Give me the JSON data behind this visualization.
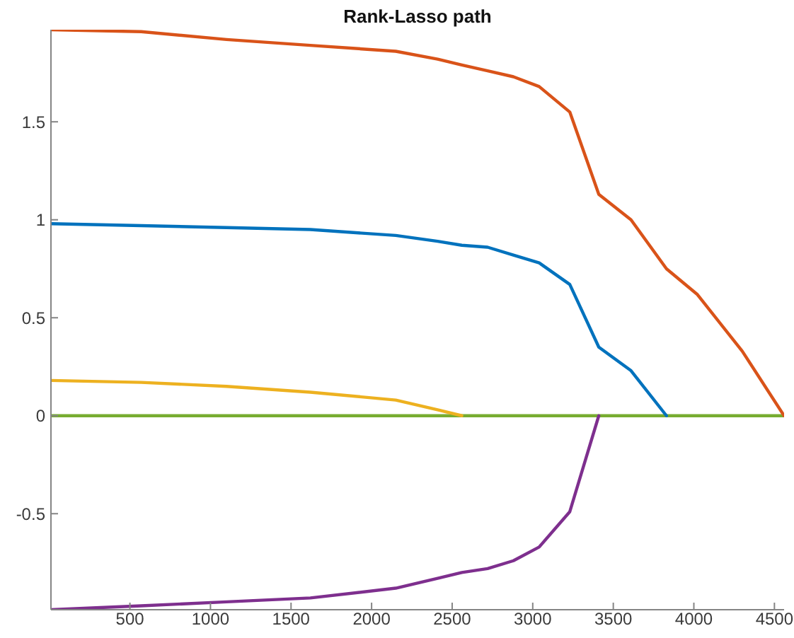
{
  "chart_data": {
    "type": "line",
    "title": "Rank-Lasso path",
    "x": [
      10,
      570,
      1100,
      1620,
      2150,
      2410,
      2560,
      2720,
      2880,
      3040,
      3230,
      3410,
      3610,
      3830,
      4020,
      4300,
      4560
    ],
    "series": [
      {
        "color": "#0072bd",
        "values": [
          0.98,
          0.97,
          0.96,
          0.95,
          0.92,
          0.89,
          0.87,
          0.86,
          0.82,
          0.78,
          0.67,
          0.35,
          0.23,
          0,
          null,
          null,
          null
        ]
      },
      {
        "color": "#d95319",
        "values": [
          1.97,
          1.96,
          1.92,
          1.89,
          1.86,
          1.82,
          1.79,
          1.76,
          1.73,
          1.68,
          1.55,
          1.13,
          1.0,
          0.75,
          0.62,
          0.33,
          0
        ]
      },
      {
        "color": "#edb120",
        "values": [
          0.18,
          0.17,
          0.15,
          0.12,
          0.08,
          0.03,
          0,
          null,
          null,
          null,
          null,
          null,
          null,
          null,
          null,
          null,
          null
        ]
      },
      {
        "color": "#7e2f8e",
        "values": [
          -0.99,
          -0.97,
          -0.95,
          -0.93,
          -0.88,
          -0.83,
          -0.8,
          -0.78,
          -0.74,
          -0.67,
          -0.49,
          0,
          null,
          null,
          null,
          null,
          null
        ]
      },
      {
        "color": "#77ac30",
        "values": [
          0,
          0,
          0,
          0,
          0,
          0,
          0,
          0,
          0,
          0,
          0,
          0,
          0,
          0,
          0,
          0,
          0
        ]
      }
    ],
    "xlim": [
      10,
      4560
    ],
    "xticks": [
      500,
      1000,
      1500,
      2000,
      2500,
      3000,
      3500,
      4000,
      4500
    ],
    "ylim": [
      -0.99,
      1.97
    ],
    "yticks": [
      -0.5,
      0,
      0.5,
      1,
      1.5
    ]
  }
}
